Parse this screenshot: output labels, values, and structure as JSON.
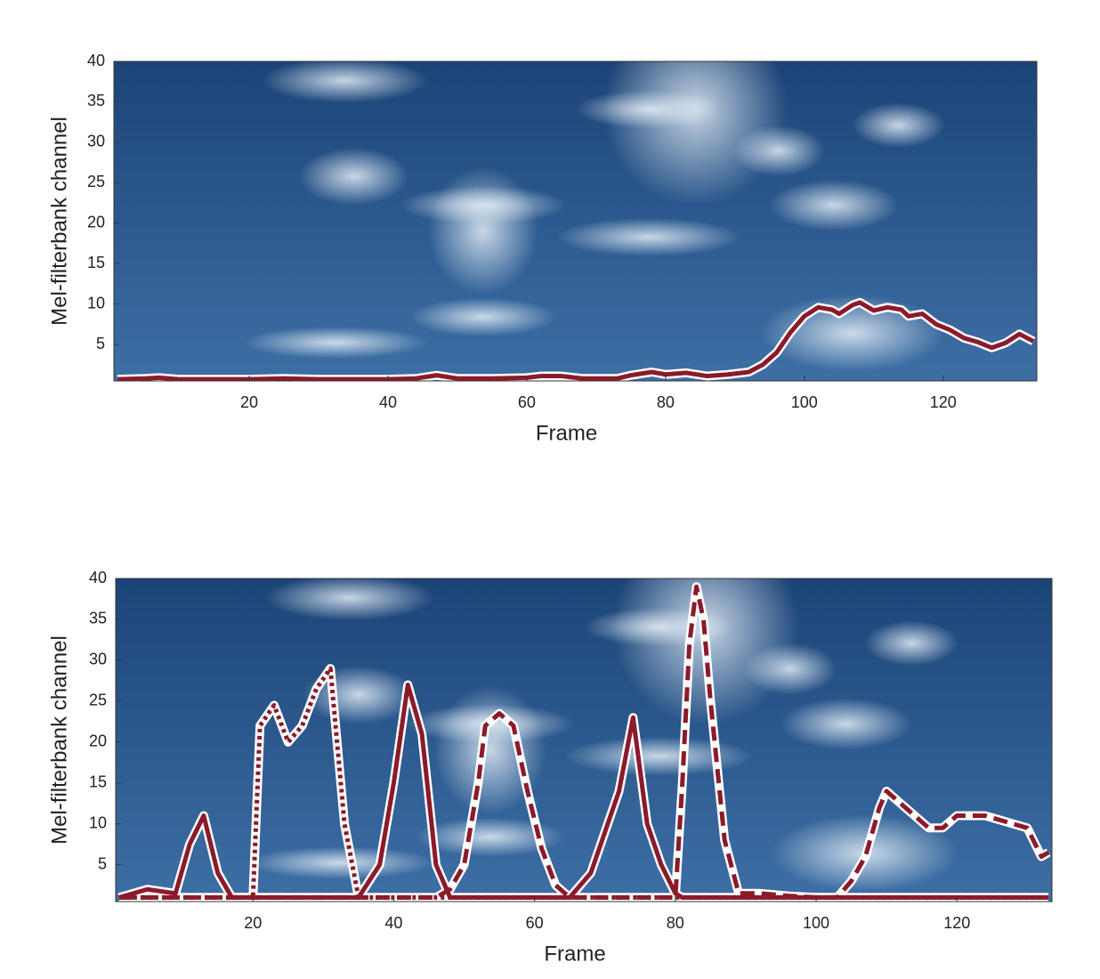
{
  "chart_data": [
    {
      "type": "line",
      "xlabel": "Frame",
      "ylabel": "Mel-filterbank channel",
      "xlim": [
        0.5,
        133.5
      ],
      "ylim": [
        0.5,
        40
      ],
      "xticks": [
        20,
        40,
        60,
        80,
        100,
        120
      ],
      "yticks": [
        5,
        10,
        15,
        20,
        25,
        30,
        35,
        40
      ],
      "x": [
        1,
        5,
        7,
        10,
        20,
        25,
        30,
        40,
        44,
        47,
        50,
        55,
        60,
        62,
        65,
        68,
        73,
        75,
        78,
        80,
        83,
        86,
        89,
        92,
        94,
        96,
        98,
        100,
        102,
        104,
        105,
        107,
        108,
        110,
        112,
        114,
        115,
        117,
        119,
        121,
        123,
        125,
        127,
        129,
        131,
        133
      ],
      "series": [
        {
          "color": "#8b1a2b",
          "dash": "solid",
          "values": [
            0.7,
            0.8,
            0.9,
            0.7,
            0.7,
            0.8,
            0.7,
            0.7,
            0.8,
            1.2,
            0.8,
            0.8,
            0.9,
            1.1,
            1.1,
            0.8,
            0.8,
            1.2,
            1.6,
            1.3,
            1.5,
            1.1,
            1.3,
            1.6,
            2.5,
            4,
            6.5,
            8.5,
            9.6,
            9.3,
            8.8,
            9.9,
            10.2,
            9.2,
            9.6,
            9.3,
            8.5,
            8.8,
            7.5,
            6.8,
            5.8,
            5.3,
            4.6,
            5.2,
            6.3,
            5.4
          ]
        }
      ]
    },
    {
      "type": "line",
      "xlabel": "Frame",
      "ylabel": "Mel-filterbank channel",
      "xlim": [
        0.5,
        133.5
      ],
      "ylim": [
        0.5,
        40
      ],
      "xticks": [
        20,
        40,
        60,
        80,
        100,
        120
      ],
      "yticks": [
        5,
        10,
        15,
        20,
        25,
        30,
        35,
        40
      ],
      "x": [
        1,
        5,
        9,
        11,
        13,
        15,
        17,
        20,
        21,
        23,
        25,
        27,
        29,
        31,
        33,
        35,
        38,
        40,
        42,
        44,
        46,
        48,
        50,
        52,
        53,
        55,
        57,
        59,
        61,
        63,
        65,
        68,
        70,
        72,
        74,
        76,
        78,
        80,
        81,
        82,
        83,
        84,
        85,
        87,
        89,
        92,
        96,
        100,
        103,
        105,
        107,
        109,
        110,
        112,
        114,
        116,
        118,
        120,
        122,
        124,
        126,
        128,
        130,
        132,
        133
      ],
      "series": [
        {
          "color": "#8b1a2b",
          "dash": "solid",
          "values": [
            1,
            2,
            1.5,
            7.5,
            11,
            4,
            1,
            1,
            1,
            1,
            1,
            1,
            1,
            1,
            1,
            1,
            5,
            15,
            27,
            21,
            5,
            1,
            1,
            1,
            1,
            1,
            1,
            1,
            1,
            1,
            1,
            4,
            9,
            14,
            23,
            10,
            5,
            1.5,
            1,
            1,
            1,
            1,
            1,
            1,
            1,
            1,
            1,
            1,
            1,
            1,
            1,
            1,
            1,
            1,
            1,
            1,
            1,
            1,
            1,
            1,
            1,
            1,
            1,
            1,
            1
          ]
        },
        {
          "color": "#8b1a2b",
          "dash": "dotted",
          "values": [
            1,
            1,
            1,
            1,
            1,
            1,
            1,
            1,
            22,
            24.5,
            20,
            22,
            26.5,
            29,
            10,
            1,
            1,
            1,
            1,
            1,
            1,
            1,
            1,
            1,
            1,
            1,
            1,
            1,
            1,
            1,
            1,
            1,
            1,
            1,
            1,
            1,
            1,
            1,
            1,
            1,
            1,
            1,
            1,
            1,
            1,
            1,
            1,
            1,
            1,
            1,
            1,
            1,
            1,
            1,
            1,
            1,
            1,
            1,
            1,
            1,
            1,
            1,
            1,
            1,
            1
          ]
        },
        {
          "color": "#8b1a2b",
          "dash": "dashed",
          "values": [
            1,
            1,
            1,
            1,
            1,
            1,
            1,
            1,
            1,
            1,
            1,
            1,
            1,
            1,
            1,
            1,
            1,
            1,
            1,
            1,
            1,
            2,
            5,
            15,
            22,
            23.5,
            22,
            14,
            7,
            2.5,
            1,
            1,
            1,
            1,
            1,
            1,
            1,
            1,
            15,
            32,
            39,
            35,
            25,
            8,
            1.5,
            1.5,
            1.2,
            1,
            1,
            3,
            6,
            12,
            14,
            12.5,
            11,
            9.5,
            9.5,
            11,
            11,
            11,
            10.5,
            10,
            9.5,
            6,
            6.5
          ]
        }
      ]
    }
  ]
}
